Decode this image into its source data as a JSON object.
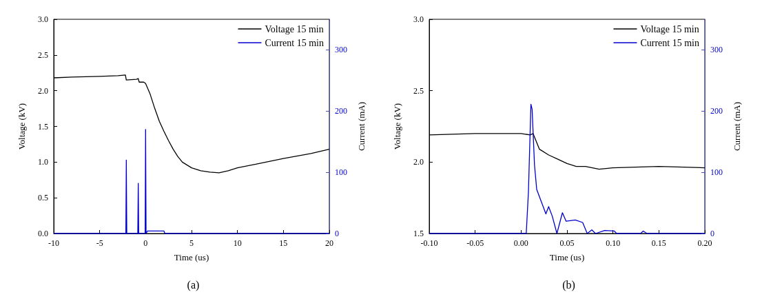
{
  "chart_data": [
    {
      "type": "line",
      "xlabel": "Time (us)",
      "ylabel": "Voltage (kV)",
      "y2label": "Current (mA)",
      "annotations": [
        "(a)"
      ],
      "xlim": [
        -10,
        20
      ],
      "xticks": [
        -10,
        -5,
        0,
        5,
        10,
        15,
        20
      ],
      "ylim": [
        0,
        3
      ],
      "yticks": [
        {
          "value": 0,
          "label": "0.0"
        },
        0.5,
        {
          "value": 1,
          "label": "1.0"
        },
        1.5,
        {
          "value": 2,
          "label": "2.0"
        },
        2.5,
        {
          "value": 3,
          "label": "3.0"
        }
      ],
      "y2lim": [
        0,
        350
      ],
      "y2ticks": [
        0,
        100,
        200,
        300
      ],
      "grid": false,
      "legend": "top right",
      "marker": "none",
      "series": [
        {
          "name": "Voltage 15 min",
          "color": "#000000",
          "x": [
            -10,
            -8,
            -5,
            -3,
            -2.2,
            -2.1,
            -1,
            -0.8,
            -0.7,
            -0.2,
            0,
            0.5,
            1,
            1.5,
            2,
            2.5,
            3,
            3.5,
            4,
            5,
            6,
            7,
            8,
            9,
            10,
            12,
            15,
            18,
            20
          ],
          "values": [
            2.18,
            2.19,
            2.2,
            2.21,
            2.22,
            2.15,
            2.16,
            2.17,
            2.12,
            2.12,
            2.1,
            1.95,
            1.75,
            1.57,
            1.43,
            1.3,
            1.18,
            1.08,
            1,
            0.92,
            0.88,
            0.86,
            0.85,
            0.88,
            0.92,
            0.97,
            1.05,
            1.12,
            1.18
          ]
        },
        {
          "name": "Current 15 min",
          "color": "#0000cc",
          "axis": "y2",
          "x": [
            -10,
            -2.15,
            -2.1,
            -2.05,
            -0.85,
            -0.8,
            -0.75,
            -0.05,
            0,
            0.05,
            0.2,
            2,
            2.1,
            20
          ],
          "values": [
            0,
            0,
            120,
            0,
            0,
            82,
            0,
            0,
            170,
            0,
            4,
            4,
            0,
            0
          ]
        }
      ]
    },
    {
      "type": "line",
      "xlabel": "Time (us)",
      "ylabel": "Voltage (kV)",
      "y2label": "Current (mA)",
      "annotations": [
        "(b)"
      ],
      "xlim": [
        -0.1,
        0.2
      ],
      "xticks": [
        {
          "value": -0.1,
          "label": "-0.10"
        },
        -0.05,
        {
          "value": 0,
          "label": "0.00"
        },
        0.05,
        {
          "value": 0.1,
          "label": "0.10"
        },
        0.15,
        {
          "value": 0.2,
          "label": "0.20"
        }
      ],
      "ylim": [
        1.5,
        3
      ],
      "yticks": [
        1.5,
        {
          "value": 2,
          "label": "2.0"
        },
        2.5,
        {
          "value": 3,
          "label": "3.0"
        }
      ],
      "y2lim": [
        0,
        350
      ],
      "y2ticks": [
        0,
        100,
        200,
        300
      ],
      "grid": false,
      "legend": "top right",
      "marker": "none",
      "series": [
        {
          "name": "Voltage 15 min",
          "color": "#000000",
          "x": [
            -0.1,
            -0.05,
            0,
            0.01,
            0.013,
            0.02,
            0.03,
            0.04,
            0.05,
            0.06,
            0.07,
            0.085,
            0.1,
            0.15,
            0.2
          ],
          "values": [
            2.19,
            2.2,
            2.2,
            2.19,
            2.2,
            2.09,
            2.05,
            2.02,
            1.99,
            1.97,
            1.97,
            1.95,
            1.96,
            1.97,
            1.96
          ]
        },
        {
          "name": "Current 15 min",
          "color": "#0000cc",
          "axis": "y2",
          "x": [
            -0.1,
            0,
            0.0056,
            0.008,
            0.0107,
            0.012,
            0.0146,
            0.017,
            0.022,
            0.027,
            0.03,
            0.034,
            0.039,
            0.045,
            0.049,
            0.059,
            0.067,
            0.072,
            0.077,
            0.081,
            0.091,
            0.1015,
            0.104,
            0.13,
            0.133,
            0.137,
            0.2
          ],
          "values": [
            0,
            0,
            0,
            68,
            211,
            203,
            112,
            72,
            52,
            32,
            44,
            28,
            0,
            34,
            20,
            22,
            18,
            0,
            6,
            0,
            5,
            4,
            0,
            0,
            4,
            0,
            0
          ]
        }
      ]
    }
  ]
}
